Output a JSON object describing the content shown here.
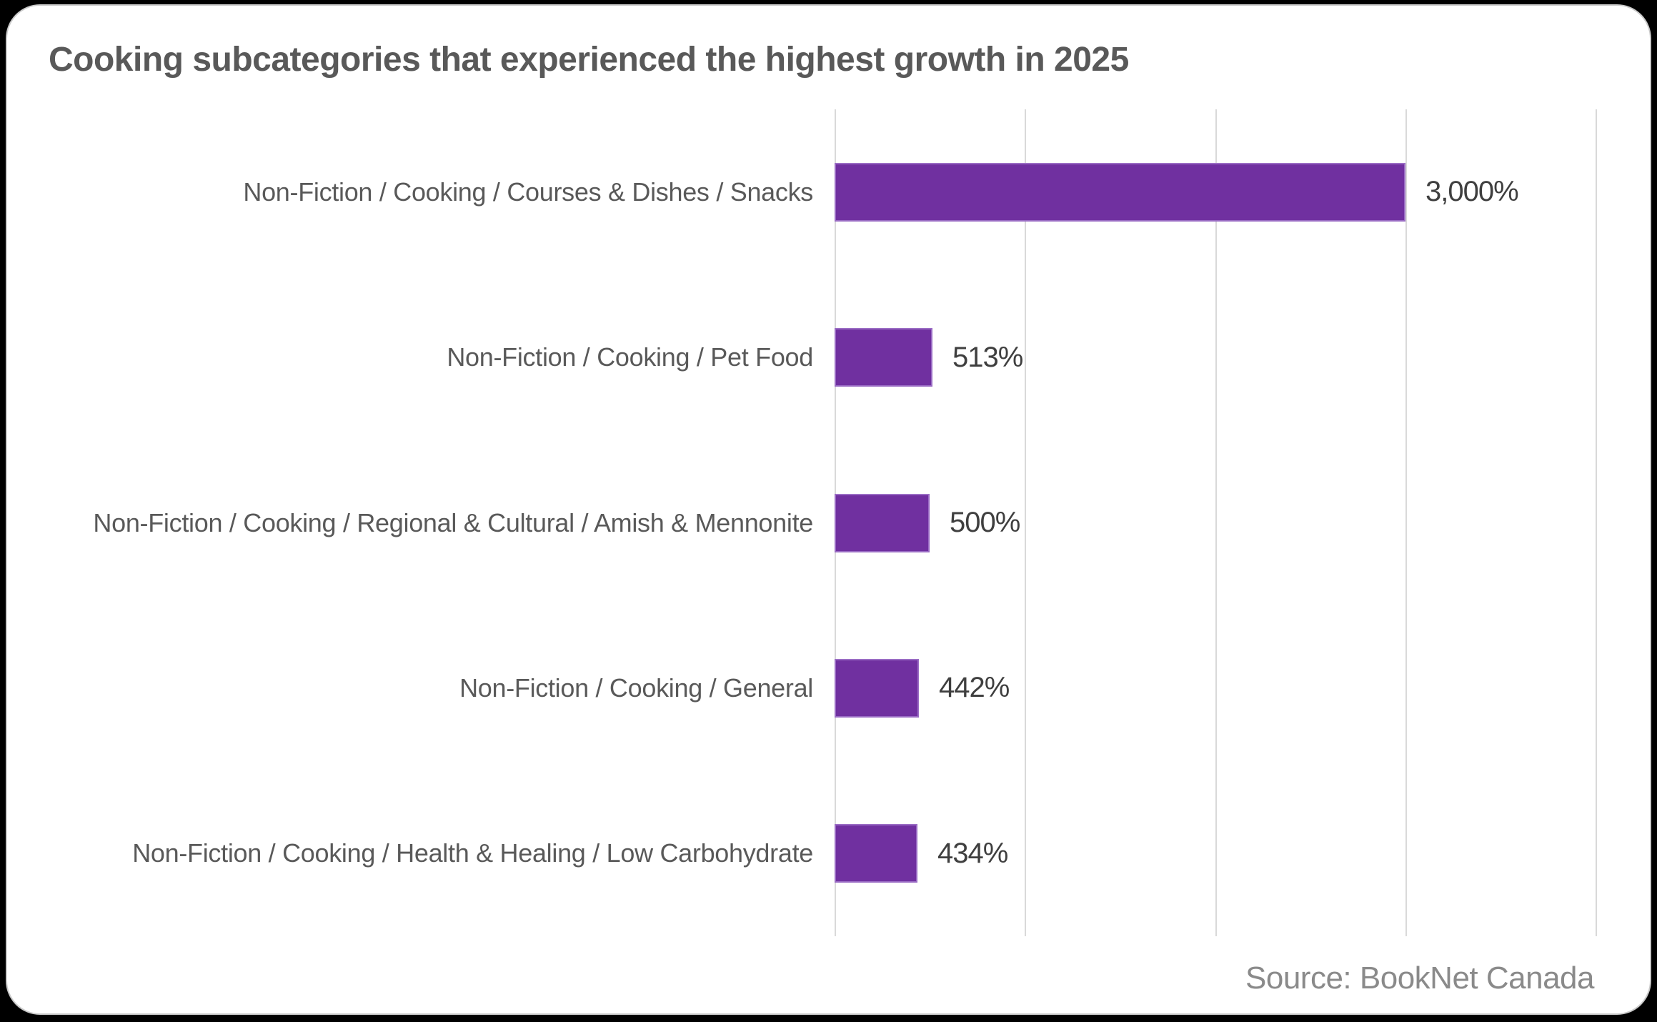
{
  "card": {
    "title": "Cooking subcategories that experienced the highest growth in 2025",
    "source": "Source: BookNet Canada"
  },
  "chart_data": {
    "type": "bar",
    "orientation": "horizontal",
    "title": "Cooking subcategories that experienced the highest growth in 2025",
    "xlabel": "",
    "ylabel": "",
    "categories": [
      "Non-Fiction / Cooking / Courses & Dishes / Snacks",
      "Non-Fiction / Cooking / Pet Food",
      "Non-Fiction / Cooking / Regional & Cultural / Amish & Mennonite",
      "Non-Fiction / Cooking / General",
      "Non-Fiction / Cooking / Health & Healing / Low Carbohydrate"
    ],
    "values": [
      3000,
      513,
      500,
      442,
      434
    ],
    "value_labels": [
      "3,000%",
      "513%",
      "500%",
      "442%",
      "434%"
    ],
    "xlim": [
      0,
      4000
    ],
    "gridline_step": 1000,
    "grid": true,
    "legend_position": "none",
    "annotation": "Source: BookNet Canada",
    "colors": {
      "bar": "#7030a0",
      "gridline": "#d9d9d9",
      "title_text": "#595959",
      "category_text": "#595959",
      "value_text": "#3f3f3f",
      "source_text": "#8a8a8a"
    }
  }
}
